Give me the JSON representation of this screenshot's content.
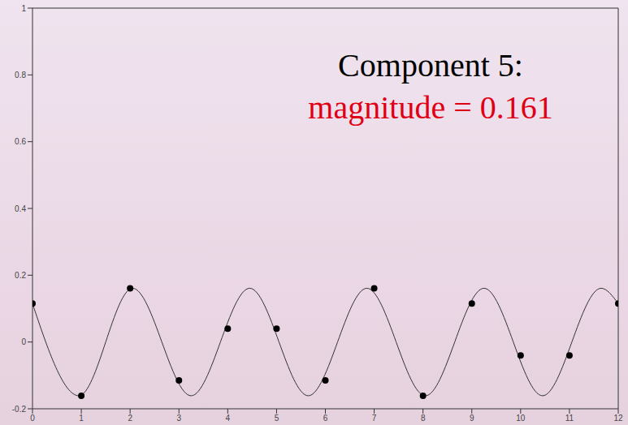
{
  "chart_data": {
    "type": "line",
    "title": "Component 5:",
    "subtitle": "magnitude = 0.161",
    "xlim": [
      0,
      12
    ],
    "xticks": [
      0,
      1,
      2,
      3,
      4,
      5,
      6,
      7,
      8,
      9,
      10,
      11,
      12
    ],
    "ylim": [
      -0.2,
      1
    ],
    "yticks": [
      -0.2,
      0,
      0.2,
      0.4,
      0.6,
      0.8,
      1
    ],
    "grid": false,
    "series": [
      {
        "type": "line",
        "color": "#333333",
        "line_style": "solid",
        "x": [
          0,
          0.95,
          2.05,
          3.25,
          4.45,
          5.65,
          6.85,
          8.05,
          9.25,
          10.45,
          11.65,
          12
        ],
        "values": [
          0.115,
          -0.161,
          0.161,
          -0.161,
          0.161,
          -0.161,
          0.161,
          -0.161,
          0.161,
          -0.161,
          0.161,
          0.115
        ]
      },
      {
        "type": "scatter",
        "color": "#000000",
        "marker": "circle",
        "x": [
          0,
          1,
          2,
          3,
          4,
          5,
          6,
          7,
          8,
          9,
          10,
          11,
          12
        ],
        "values": [
          0.115,
          -0.161,
          0.161,
          -0.115,
          0.04,
          0.04,
          -0.115,
          0.161,
          -0.161,
          0.115,
          -0.04,
          -0.04,
          0.115
        ]
      }
    ]
  }
}
